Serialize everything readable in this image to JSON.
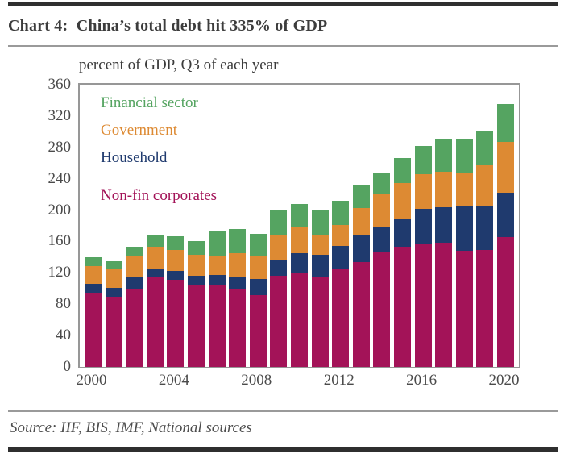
{
  "header": {
    "title": "Chart 4:  China’s total debt hit 335% of GDP"
  },
  "chart_data": {
    "type": "bar",
    "stacked": true,
    "subtitle": "percent of GDP, Q3 of each year",
    "title": "Chart 4: China’s total debt hit 335% of GDP",
    "ylabel": "percent of GDP",
    "xlabel": "",
    "ylim": [
      0,
      360
    ],
    "yticks": [
      "0",
      "40",
      "80",
      "120",
      "160",
      "200",
      "240",
      "280",
      "320",
      "360"
    ],
    "ytick_values": [
      0,
      40,
      80,
      120,
      160,
      200,
      240,
      280,
      320,
      360
    ],
    "xticks": [
      "2000",
      "2004",
      "2008",
      "2012",
      "2016",
      "2020"
    ],
    "xtick_years": [
      2000,
      2004,
      2008,
      2012,
      2016,
      2020
    ],
    "grid": false,
    "legend_position": "inside top-left",
    "categories": [
      2000,
      2001,
      2002,
      2003,
      2004,
      2005,
      2006,
      2007,
      2008,
      2009,
      2010,
      2011,
      2012,
      2013,
      2014,
      2015,
      2016,
      2017,
      2018,
      2019,
      2020
    ],
    "series": [
      {
        "name": "Non-fin corporates",
        "color": "#A31358",
        "values": [
          95,
          90,
          100,
          114,
          111,
          104,
          104,
          99,
          92,
          116,
          119,
          114,
          124,
          134,
          147,
          153,
          157,
          158,
          148,
          149,
          166
        ]
      },
      {
        "name": "Household",
        "color": "#1F3A6E",
        "values": [
          11,
          11,
          14,
          11,
          11,
          12,
          13,
          16,
          20,
          21,
          26,
          29,
          30,
          35,
          32,
          35,
          45,
          46,
          57,
          56,
          56
        ]
      },
      {
        "name": "Government",
        "color": "#DD8A33",
        "values": [
          23,
          23,
          27,
          28,
          27,
          27,
          24,
          30,
          30,
          32,
          33,
          26,
          27,
          34,
          41,
          47,
          44,
          45,
          42,
          52,
          65
        ]
      },
      {
        "name": "Financial sector",
        "color": "#55A461",
        "values": [
          11,
          11,
          12,
          15,
          18,
          17,
          32,
          31,
          28,
          31,
          30,
          31,
          31,
          28,
          28,
          31,
          36,
          42,
          44,
          44,
          48
        ]
      }
    ],
    "totals": [
      140,
      135,
      153,
      168,
      167,
      160,
      173,
      176,
      170,
      200,
      208,
      200,
      212,
      231,
      248,
      266,
      282,
      291,
      291,
      301,
      335
    ]
  },
  "footer": {
    "source": "Source: IIF, BIS, IMF, National sources"
  }
}
